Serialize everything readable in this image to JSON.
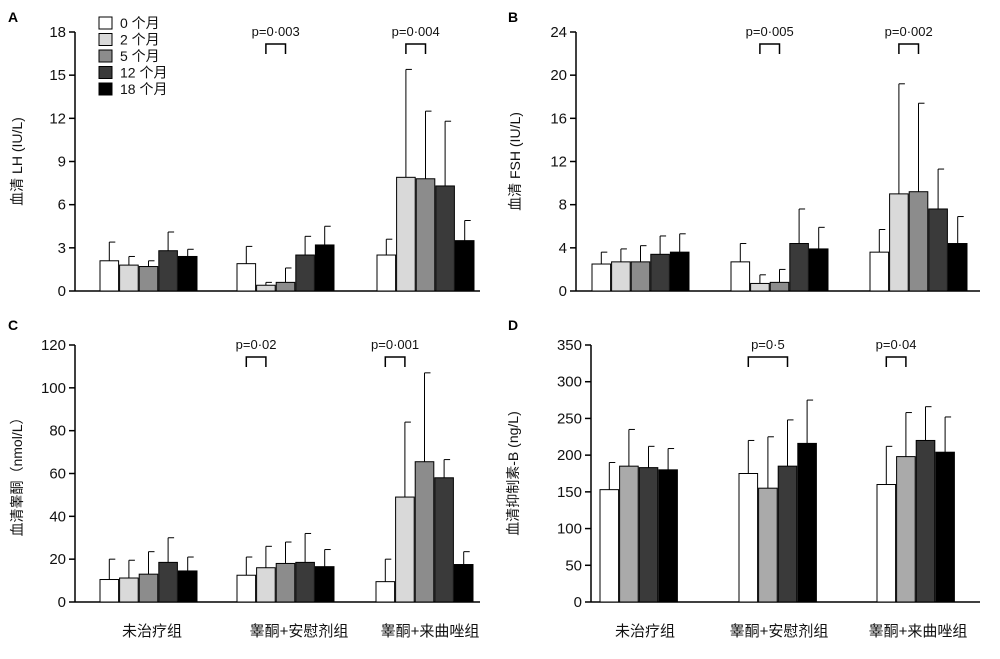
{
  "group_labels": [
    "未治疗组",
    "睾酮+安慰剂组",
    "睾酮+来曲唑组"
  ],
  "legend": {
    "placement": "top-left of panel A",
    "items": [
      {
        "label": "0  个月",
        "color": "#ffffff"
      },
      {
        "label": "2  个月",
        "color": "#d9d9d9"
      },
      {
        "label": "5  个月",
        "color": "#8c8c8c"
      },
      {
        "label": "12 个月",
        "color": "#3a3a3a"
      },
      {
        "label": "18 个月",
        "color": "#000000"
      }
    ]
  },
  "series_colors": {
    "0": "#ffffff",
    "2": "#d9d9d9",
    "5": "#8c8c8c",
    "12": "#3a3a3a",
    "18": "#000000",
    "D_light": "#aaaaaa"
  },
  "chart_data": [
    {
      "panel": "A",
      "type": "bar",
      "ylabel": "血清 LH (IU/L)",
      "ylim": [
        0,
        18
      ],
      "yticks": [
        "0",
        "3",
        "6",
        "9",
        "12",
        "15",
        "18"
      ],
      "categories": [
        "未治疗组",
        "睾酮+安慰剂组",
        "睾酮+来曲唑组"
      ],
      "series": [
        {
          "months": 0,
          "values": [
            2.1,
            1.9,
            2.5
          ],
          "errors": [
            1.3,
            1.2,
            1.1
          ]
        },
        {
          "months": 2,
          "values": [
            1.8,
            0.4,
            7.9
          ],
          "errors": [
            0.6,
            0.2,
            7.5
          ]
        },
        {
          "months": 5,
          "values": [
            1.7,
            0.6,
            7.8
          ],
          "errors": [
            0.4,
            1.0,
            4.7
          ]
        },
        {
          "months": 12,
          "values": [
            2.8,
            2.5,
            7.3
          ],
          "errors": [
            1.3,
            1.3,
            4.5
          ]
        },
        {
          "months": 18,
          "values": [
            2.4,
            3.2,
            3.5
          ],
          "errors": [
            0.5,
            1.3,
            1.4
          ]
        }
      ],
      "pvalues": [
        {
          "text": "p=0·003",
          "group": 1,
          "from": 1,
          "to": 2
        },
        {
          "text": "p=0·004",
          "group": 2,
          "from": 1,
          "to": 2
        }
      ]
    },
    {
      "panel": "B",
      "type": "bar",
      "ylabel": "血清 FSH (IU/L)",
      "ylim": [
        0,
        24
      ],
      "yticks": [
        "0",
        "4",
        "8",
        "12",
        "16",
        "20",
        "24"
      ],
      "categories": [
        "未治疗组",
        "睾酮+安慰剂组",
        "睾酮+来曲唑组"
      ],
      "series": [
        {
          "months": 0,
          "values": [
            2.5,
            2.7,
            3.6
          ],
          "errors": [
            1.1,
            1.7,
            2.1
          ]
        },
        {
          "months": 2,
          "values": [
            2.7,
            0.7,
            9.0
          ],
          "errors": [
            1.2,
            0.8,
            10.2
          ]
        },
        {
          "months": 5,
          "values": [
            2.7,
            0.8,
            9.2
          ],
          "errors": [
            1.5,
            1.2,
            8.2
          ]
        },
        {
          "months": 12,
          "values": [
            3.4,
            4.4,
            7.6
          ],
          "errors": [
            1.7,
            3.2,
            3.7
          ]
        },
        {
          "months": 18,
          "values": [
            3.6,
            3.9,
            4.4
          ],
          "errors": [
            1.7,
            2.0,
            2.5
          ]
        }
      ],
      "pvalues": [
        {
          "text": "p=0·005",
          "group": 1,
          "from": 1,
          "to": 2
        },
        {
          "text": "p=0·002",
          "group": 2,
          "from": 1,
          "to": 2
        }
      ]
    },
    {
      "panel": "C",
      "type": "bar",
      "ylabel": "血清睾酮（nmol/L）",
      "ylim": [
        0,
        120
      ],
      "yticks": [
        "0",
        "20",
        "40",
        "60",
        "80",
        "100",
        "120"
      ],
      "categories": [
        "未治疗组",
        "睾酮+安慰剂组",
        "睾酮+来曲唑组"
      ],
      "series": [
        {
          "months": 0,
          "values": [
            10.5,
            12.5,
            9.5
          ],
          "errors": [
            9.5,
            8.5,
            10.5
          ]
        },
        {
          "months": 2,
          "values": [
            11.2,
            16.0,
            49.0
          ],
          "errors": [
            8.3,
            10.0,
            35.0
          ]
        },
        {
          "months": 5,
          "values": [
            13.0,
            18.0,
            65.5
          ],
          "errors": [
            10.5,
            10.0,
            41.5
          ]
        },
        {
          "months": 12,
          "values": [
            18.5,
            18.5,
            58.0
          ],
          "errors": [
            11.5,
            13.5,
            8.5
          ]
        },
        {
          "months": 18,
          "values": [
            14.5,
            16.5,
            17.5
          ],
          "errors": [
            6.5,
            8.0,
            6.0
          ]
        }
      ],
      "pvalues": [
        {
          "text": "p=0·02",
          "group": 1,
          "from": 0,
          "to": 1
        },
        {
          "text": "p=0·001",
          "group": 2,
          "from": 0,
          "to": 1
        }
      ]
    },
    {
      "panel": "D",
      "type": "bar",
      "ylabel": "血清抑制素-B (ng/L)",
      "ylim": [
        0,
        350
      ],
      "yticks": [
        "0",
        "50",
        "100",
        "150",
        "200",
        "250",
        "300",
        "350"
      ],
      "categories": [
        "未治疗组",
        "睾酮+安慰剂组",
        "睾酮+来曲唑组"
      ],
      "series": [
        {
          "months": 0,
          "values": [
            153,
            175,
            160
          ],
          "errors": [
            37,
            45,
            52
          ]
        },
        {
          "months": 2,
          "values": [
            185,
            155,
            198
          ],
          "errors": [
            50,
            70,
            60
          ]
        },
        {
          "months": 12,
          "values": [
            183,
            185,
            220
          ],
          "errors": [
            29,
            63,
            46
          ]
        },
        {
          "months": 18,
          "values": [
            180,
            216,
            204
          ],
          "errors": [
            29,
            59,
            48
          ]
        }
      ],
      "pvalues": [
        {
          "text": "p=0·5",
          "group": 1,
          "from": 0,
          "to": 2
        },
        {
          "text": "p=0·04",
          "group": 2,
          "from": 0,
          "to": 1
        }
      ]
    }
  ]
}
